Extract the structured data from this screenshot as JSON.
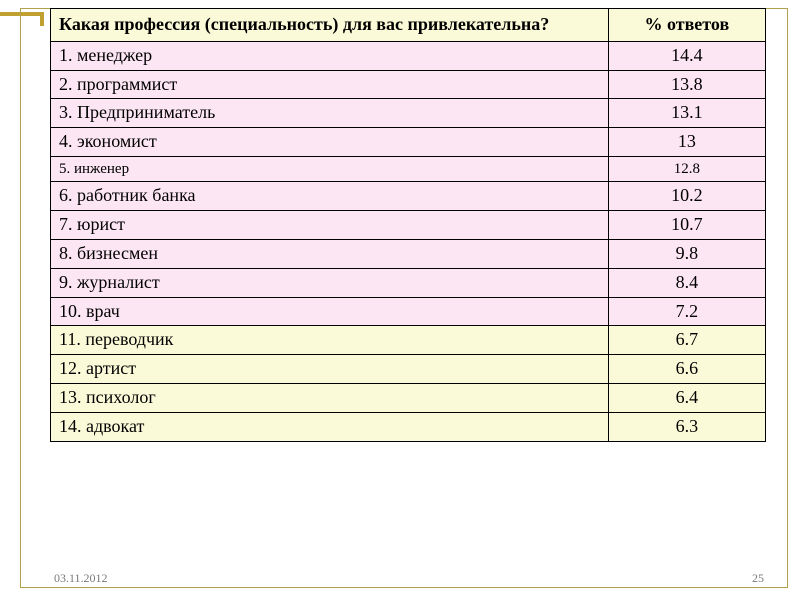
{
  "colors": {
    "header_bg": "#fbfad8",
    "pink_bg": "#fde6f3",
    "yellow_bg": "#fbfad8",
    "border": "#000000",
    "frame": "#b0a050",
    "accent": "#c0a030",
    "footer_text": "#7a7a7a",
    "page_bg": "#ffffff"
  },
  "table": {
    "type": "table",
    "header": {
      "profession": "Какая профессия (специальность) для вас привлекательна?",
      "percent": "% ответов"
    },
    "columns": [
      "profession",
      "percent"
    ],
    "column_widths_pct": [
      78,
      22
    ],
    "header_fontsize": 18,
    "body_fontsize": 18,
    "small_fontsize": 15,
    "rows": [
      {
        "profession": "1. менеджер",
        "percent": "14.4",
        "group": "pink",
        "small": false
      },
      {
        "profession": "2. программист",
        "percent": "13.8",
        "group": "pink",
        "small": false
      },
      {
        "profession": "3. Предприниматель",
        "percent": "13.1",
        "group": "pink",
        "small": false
      },
      {
        "profession": "4. экономист",
        "percent": "13",
        "group": "pink",
        "small": false
      },
      {
        "profession": "5. инженер",
        "percent": "12.8",
        "group": "pink",
        "small": true
      },
      {
        "profession": "6. работник банка",
        "percent": "10.2",
        "group": "pink",
        "small": false
      },
      {
        "profession": "7. юрист",
        "percent": "10.7",
        "group": "pink",
        "small": false
      },
      {
        "profession": "8. бизнесмен",
        "percent": "9.8",
        "group": "pink",
        "small": false
      },
      {
        "profession": "9. журналист",
        "percent": "8.4",
        "group": "pink",
        "small": false
      },
      {
        "profession": "10. врач",
        "percent": "7.2",
        "group": "pink",
        "small": false
      },
      {
        "profession": "11. переводчик",
        "percent": "6.7",
        "group": "yellow",
        "small": false
      },
      {
        "profession": "12. артист",
        "percent": "6.6",
        "group": "yellow",
        "small": false
      },
      {
        "profession": "13. психолог",
        "percent": "6.4",
        "group": "yellow",
        "small": false
      },
      {
        "profession": "14. адвокат",
        "percent": "6.3",
        "group": "yellow",
        "small": false
      }
    ]
  },
  "footer": {
    "date": "03.11.2012",
    "page": "25"
  }
}
